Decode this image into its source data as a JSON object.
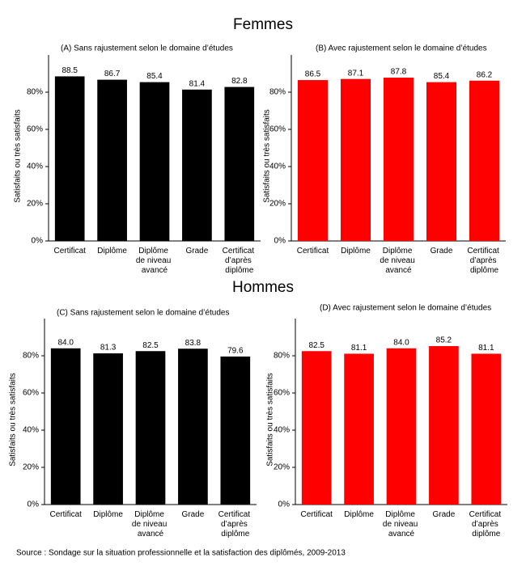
{
  "sections": [
    "Femmes",
    "Hommes"
  ],
  "source": "Source : Sondage sur la situation professionnelle et la satisfaction des diplômés, 2009-2013",
  "chart_data": [
    {
      "type": "bar",
      "title": "(A)  Sans rajustement selon le domaine d’études",
      "ylabel": "Satisfaits ou très satisfaits",
      "categories": [
        "Certificat",
        "Diplôme",
        "Diplôme de niveau avancé",
        "Grade",
        "Certificat d’après diplôme"
      ],
      "values": [
        88.5,
        86.7,
        85.4,
        81.4,
        82.8
      ],
      "value_labels": [
        "88.5",
        "86.7",
        "85.4",
        "81.4",
        "82.8"
      ],
      "color": "#000000",
      "ylim": [
        0,
        100
      ],
      "yticks": [
        {
          "value": 0,
          "label": "0%"
        },
        {
          "value": 20,
          "label": "20%"
        },
        {
          "value": 40,
          "label": "40%"
        },
        {
          "value": 60,
          "label": "60%"
        },
        {
          "value": 80,
          "label": "80%"
        }
      ],
      "grid": false
    },
    {
      "type": "bar",
      "title": "(B)  Avec rajustement selon le domaine d’études",
      "ylabel": "Satisfaits ou très satisfaits",
      "categories": [
        "Certificat",
        "Diplôme",
        "Diplôme de niveau avancé",
        "Grade",
        "Certificat d’après diplôme"
      ],
      "values": [
        86.5,
        87.1,
        87.8,
        85.4,
        86.2
      ],
      "value_labels": [
        "86.5",
        "87.1",
        "87.8",
        "85.4",
        "86.2"
      ],
      "color": "#ff0000",
      "ylim": [
        0,
        100
      ],
      "yticks": [
        {
          "value": 0,
          "label": "0%"
        },
        {
          "value": 20,
          "label": "20%"
        },
        {
          "value": 40,
          "label": "40%"
        },
        {
          "value": 60,
          "label": "60%"
        },
        {
          "value": 80,
          "label": "80%"
        }
      ],
      "grid": false
    },
    {
      "type": "bar",
      "title": "(C)  Sans rajustement selon le domaine d’études",
      "ylabel": "Satisfaits ou très satisfaits",
      "categories": [
        "Certificat",
        "Diplôme",
        "Diplôme de niveau avancé",
        "Grade",
        "Certificat d’après diplôme"
      ],
      "values": [
        84.0,
        81.3,
        82.5,
        83.8,
        79.6
      ],
      "value_labels": [
        "84.0",
        "81.3",
        "82.5",
        "83.8",
        "79.6"
      ],
      "color": "#000000",
      "ylim": [
        0,
        100
      ],
      "yticks": [
        {
          "value": 0,
          "label": "0%"
        },
        {
          "value": 20,
          "label": "20%"
        },
        {
          "value": 40,
          "label": "40%"
        },
        {
          "value": 60,
          "label": "60%"
        },
        {
          "value": 80,
          "label": "80%"
        }
      ],
      "grid": false
    },
    {
      "type": "bar",
      "title": "(D)  Avec rajustement selon le domaine d’études",
      "ylabel": "Satisfaits ou très satisfaits",
      "categories": [
        "Certificat",
        "Diplôme",
        "Diplôme de niveau avancé",
        "Grade",
        "Certificat d’après diplôme"
      ],
      "values": [
        82.5,
        81.1,
        84.0,
        85.2,
        81.1
      ],
      "value_labels": [
        "82.5",
        "81.1",
        "84.0",
        "85.2",
        "81.1"
      ],
      "color": "#ff0000",
      "ylim": [
        0,
        100
      ],
      "yticks": [
        {
          "value": 0,
          "label": "0%"
        },
        {
          "value": 20,
          "label": "20%"
        },
        {
          "value": 40,
          "label": "40%"
        },
        {
          "value": 60,
          "label": "60%"
        },
        {
          "value": 80,
          "label": "80%"
        }
      ],
      "grid": false
    }
  ]
}
